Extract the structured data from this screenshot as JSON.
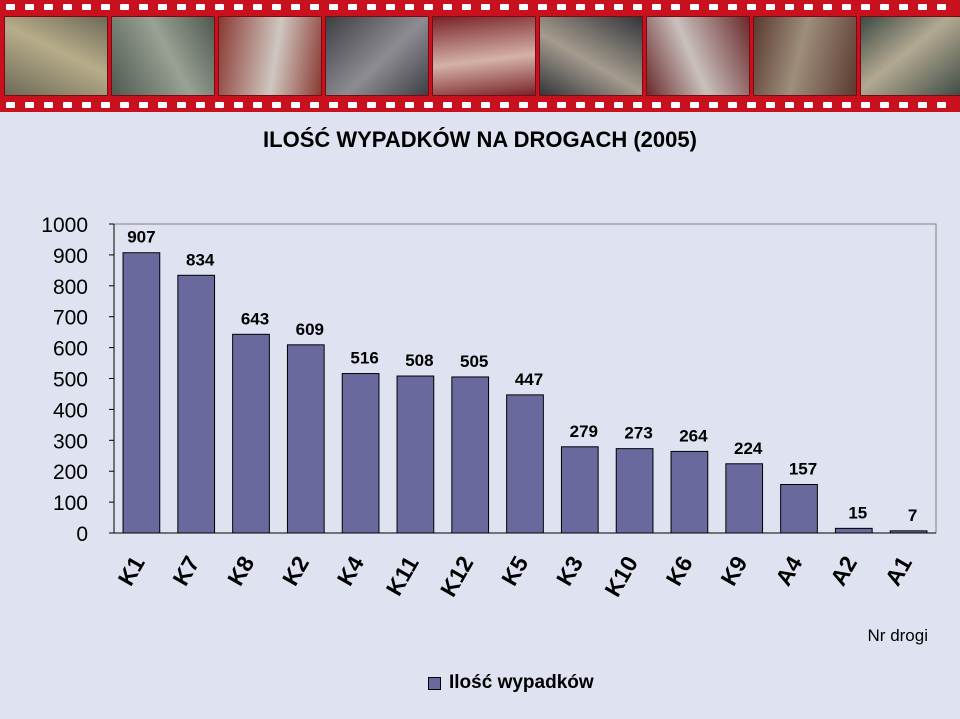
{
  "colors": {
    "background": "#dfe3f1",
    "bar_fill": "#69699e",
    "bar_stroke": "#000000",
    "filmstrip": "#c8101e",
    "plot_border": "#808080"
  },
  "chart_data": {
    "type": "bar",
    "title": "ILOŚĆ  WYPADKÓW  NA  DROGACH  (2005)",
    "xlabel": "Nr drogi",
    "ylabel": "",
    "categories": [
      "K1",
      "K7",
      "K8",
      "K2",
      "K4",
      "K11",
      "K12",
      "K5",
      "K3",
      "K10",
      "K6",
      "K9",
      "A4",
      "A2",
      "A1"
    ],
    "series": [
      {
        "name": "Ilość wypadków",
        "values": [
          907,
          834,
          643,
          609,
          516,
          508,
          505,
          447,
          279,
          273,
          264,
          224,
          157,
          15,
          7
        ]
      }
    ],
    "ylim": [
      0,
      1000
    ],
    "yticks": [
      0,
      100,
      200,
      300,
      400,
      500,
      600,
      700,
      800,
      900,
      1000
    ],
    "grid": false,
    "legend": "bottom-center",
    "data_labels": true
  }
}
